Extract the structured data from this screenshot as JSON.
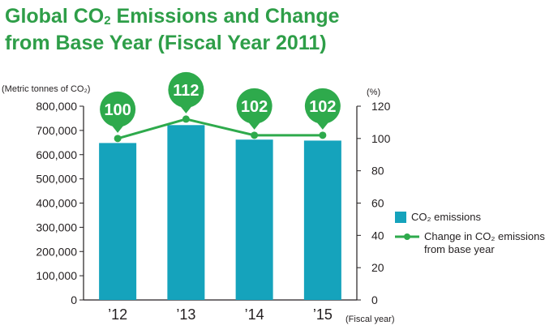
{
  "title": {
    "line1_before": "Global CO",
    "line1_sub": "2",
    "line1_after": " Emissions and Change",
    "line2": "from Base Year (Fiscal Year 2011)"
  },
  "colors": {
    "bar": "#15a3bc",
    "line": "#2eaa4c",
    "title": "#2e9e48",
    "text": "#231f20"
  },
  "chart_data": {
    "type": "bar",
    "categories": [
      "’12",
      "’13",
      "’14",
      "’15"
    ],
    "series": [
      {
        "name": "CO₂ emissions",
        "type": "bar",
        "axis": "left",
        "values": [
          648000,
          722000,
          662000,
          658000
        ]
      },
      {
        "name": "Change in CO₂ emissions from base year",
        "type": "line",
        "axis": "right",
        "values": [
          100,
          112,
          102,
          102
        ],
        "labels": [
          "100",
          "112",
          "102",
          "102"
        ]
      }
    ],
    "left_axis": {
      "label": "(Metric tonnes of CO₂)",
      "range": [
        0,
        800000
      ],
      "ticks": [
        "0",
        "100,000",
        "200,000",
        "300,000",
        "400,000",
        "500,000",
        "600,000",
        "700,000",
        "800,000"
      ]
    },
    "right_axis": {
      "label": "(%)",
      "range": [
        0,
        120
      ],
      "ticks": [
        "0",
        "20",
        "40",
        "60",
        "80",
        "100",
        "120"
      ]
    },
    "xlabel": "(Fiscal year)",
    "legend": {
      "position": "right",
      "items": [
        {
          "type": "bar",
          "label": "CO₂ emissions"
        },
        {
          "type": "line",
          "label_line1": "Change in CO₂ emissions",
          "label_line2": "from base year"
        }
      ]
    },
    "grid": false
  }
}
